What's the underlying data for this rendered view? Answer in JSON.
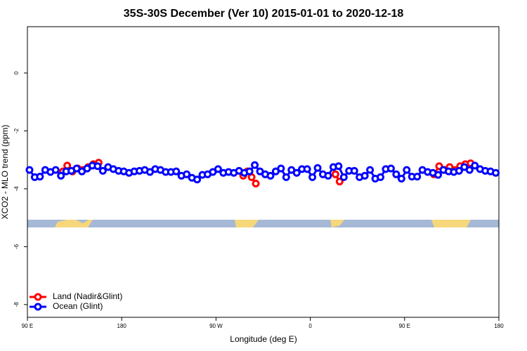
{
  "chart_data": {
    "type": "line",
    "title": "35S-30S December (Ver 10)   2015-01-01 to 2020-12-18",
    "x_label": "Longitude (deg E)",
    "y_label": "XCO2 - MLO trend (ppm)",
    "xlim": [
      90,
      540
    ],
    "xticks": [
      {
        "value": 90,
        "label": "90 E"
      },
      {
        "value": 180,
        "label": "180"
      },
      {
        "value": 270,
        "label": "90 W"
      },
      {
        "value": 360,
        "label": "0"
      },
      {
        "value": 450,
        "label": "90 E"
      },
      {
        "value": 540,
        "label": "180"
      }
    ],
    "ylim": [
      -8.44,
      1.6
    ],
    "yticks": [
      0,
      -2,
      -4,
      -6,
      -8
    ],
    "legend": "bottom-left",
    "series": [
      {
        "name": "Land (Nadir&Glint)",
        "color": "#ff0000",
        "x": [
          124,
          128,
          133,
          138,
          143,
          148,
          153,
          158,
          160,
          296,
          300,
          304,
          308,
          310,
          384,
          388,
          390,
          478,
          483,
          488,
          493,
          498,
          503,
          508,
          513
        ],
        "values": [
          -3.4,
          -3.2,
          -3.4,
          -3.3,
          -3.35,
          -3.25,
          -3.15,
          -3.1,
          null,
          -3.55,
          -3.4,
          -3.6,
          -3.82,
          null,
          -3.5,
          -3.75,
          null,
          -3.5,
          -3.22,
          -3.35,
          -3.25,
          -3.35,
          -3.22,
          -3.15,
          -3.12
        ]
      },
      {
        "name": "Ocean (Glint)",
        "color": "#0000ff",
        "x": [
          92,
          97,
          102,
          107,
          112,
          117,
          122,
          127,
          132,
          137,
          142,
          147,
          152,
          157,
          162,
          167,
          172,
          177,
          182,
          187,
          192,
          197,
          202,
          207,
          212,
          217,
          222,
          227,
          232,
          237,
          242,
          247,
          252,
          257,
          262,
          267,
          272,
          277,
          282,
          287,
          292,
          297,
          302,
          307,
          312,
          317,
          322,
          327,
          332,
          337,
          342,
          347,
          352,
          357,
          362,
          367,
          372,
          377,
          382,
          387,
          392,
          397,
          402,
          407,
          412,
          417,
          422,
          427,
          432,
          437,
          442,
          447,
          452,
          457,
          462,
          467,
          472,
          477,
          482,
          487,
          492,
          497,
          502,
          507,
          512,
          517,
          522,
          527,
          532,
          537
        ],
        "values": [
          -3.35,
          -3.6,
          -3.58,
          -3.35,
          -3.42,
          -3.35,
          -3.55,
          -3.4,
          -3.38,
          -3.3,
          -3.4,
          -3.3,
          -3.2,
          -3.22,
          -3.38,
          -3.25,
          -3.32,
          -3.38,
          -3.4,
          -3.45,
          -3.4,
          -3.38,
          -3.35,
          -3.42,
          -3.32,
          -3.35,
          -3.42,
          -3.42,
          -3.4,
          -3.55,
          -3.5,
          -3.62,
          -3.68,
          -3.52,
          -3.5,
          -3.42,
          -3.32,
          -3.45,
          -3.42,
          -3.45,
          -3.38,
          -3.45,
          -3.4,
          -3.18,
          -3.4,
          -3.5,
          -3.55,
          -3.4,
          -3.3,
          -3.6,
          -3.35,
          -3.45,
          -3.32,
          -3.32,
          -3.6,
          -3.28,
          -3.5,
          -3.55,
          -3.25,
          -3.22,
          -3.6,
          -3.38,
          -3.38,
          -3.6,
          -3.55,
          -3.35,
          -3.65,
          -3.6,
          -3.32,
          -3.3,
          -3.5,
          -3.65,
          -3.35,
          -3.58,
          -3.58,
          -3.35,
          -3.42,
          -3.45,
          -3.52,
          -3.35,
          -3.4,
          -3.42,
          -3.38,
          -3.25,
          -3.35,
          -3.2,
          -3.32,
          -3.38,
          -3.4,
          -3.45
        ]
      }
    ]
  }
}
